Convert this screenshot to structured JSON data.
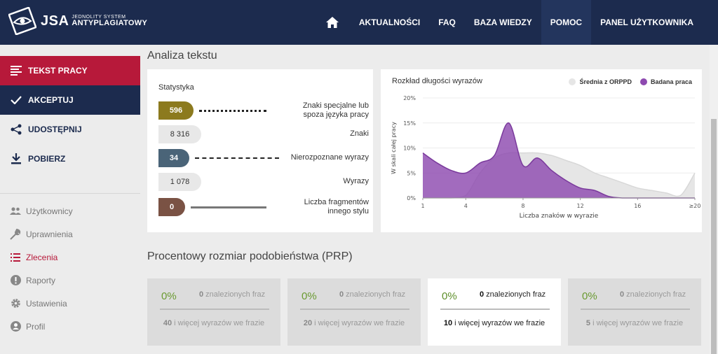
{
  "header": {
    "logo": {
      "brand": "JSA",
      "line1": "JEDNOLITY SYSTEM",
      "line2": "ANTYPLAGIATOWY"
    },
    "nav": [
      {
        "label": "AKTUALNOŚCI"
      },
      {
        "label": "FAQ"
      },
      {
        "label": "BAZA WIEDZY"
      },
      {
        "label": "POMOC"
      },
      {
        "label": "PANEL UŻYTKOWNIKA"
      }
    ],
    "home_icon": "home-icon"
  },
  "sidebar": {
    "actions": [
      {
        "label": "TEKST PRACY",
        "icon": "text-lines-icon"
      },
      {
        "label": "AKCEPTUJ",
        "icon": "check-icon"
      },
      {
        "label": "UDOSTĘPNIJ",
        "icon": "share-icon"
      },
      {
        "label": "POBIERZ",
        "icon": "download-icon"
      }
    ],
    "links": [
      {
        "label": "Użytkownicy",
        "icon": "users-icon"
      },
      {
        "label": "Uprawnienia",
        "icon": "wrench-icon"
      },
      {
        "label": "Zlecenia",
        "icon": "list-icon"
      },
      {
        "label": "Raporty",
        "icon": "alert-icon"
      },
      {
        "label": "Ustawienia",
        "icon": "gear-icon"
      },
      {
        "label": "Profil",
        "icon": "user-icon"
      }
    ]
  },
  "analysis": {
    "heading": "Analiza tekstu",
    "stats_title": "Statystyka",
    "stats": [
      {
        "value": "596",
        "label_1": "Znaki specjalne lub",
        "label_2": "spoza języka pracy",
        "color": "#8c7a1e"
      },
      {
        "value": "8 316",
        "label_1": "Znaki",
        "label_2": "",
        "color": "#e8e8e8"
      },
      {
        "value": "34",
        "label_1": "Nierozpoznane wyrazy",
        "label_2": "",
        "color": "#4a6478"
      },
      {
        "value": "1 078",
        "label_1": "Wyrazy",
        "label_2": "",
        "color": "#e8e8e8"
      },
      {
        "value": "0",
        "label_1": "Liczba fragmentów",
        "label_2": "innego stylu",
        "color": "#7a5244"
      }
    ]
  },
  "chart": {
    "title": "Rozkład długości wyrazów",
    "legend": [
      {
        "name": "Średnia z ORPPD",
        "color": "#e6e6e6"
      },
      {
        "name": "Badana praca",
        "color": "#8e4ab0"
      }
    ]
  },
  "chart_data": {
    "type": "area",
    "title": "Rozkład długości wyrazów",
    "xlabel": "Liczba znaków w wyrazie",
    "ylabel": "W skali całej pracy",
    "x_ticks": [
      "1",
      "4",
      "8",
      "12",
      "16",
      "≥20"
    ],
    "y_ticks": [
      "0%",
      "5%",
      "10%",
      "15%",
      "20%"
    ],
    "ylim": [
      0,
      20
    ],
    "x": [
      1,
      2,
      3,
      4,
      5,
      6,
      7,
      8,
      9,
      10,
      11,
      12,
      13,
      14,
      15,
      16,
      17,
      18,
      19,
      20
    ],
    "series": [
      {
        "name": "Średnia z ORPPD",
        "values": [
          0,
          0,
          0,
          0.5,
          5,
          8,
          9,
          9,
          9,
          8.5,
          7.5,
          6.5,
          5,
          4,
          3,
          2,
          1.5,
          1,
          0.5,
          5
        ]
      },
      {
        "name": "Badana praca",
        "values": [
          9,
          7,
          5.5,
          5,
          7,
          8.5,
          15,
          6.5,
          8,
          5.5,
          3.5,
          2,
          1.5,
          0.3,
          0,
          0,
          0,
          0,
          0,
          0
        ]
      }
    ]
  },
  "prp": {
    "heading": "Procentowy rozmiar podobieństwa (PRP)",
    "cards": [
      {
        "percent": "0%",
        "found_count": "0",
        "found_text": " znalezionych fraz",
        "words_count": "40",
        "words_text": " i więcej wyrazów we frazie"
      },
      {
        "percent": "0%",
        "found_count": "0",
        "found_text": " znalezionych fraz",
        "words_count": "20",
        "words_text": " i więcej wyrazów we frazie"
      },
      {
        "percent": "0%",
        "found_count": "0",
        "found_text": " znalezionych fraz",
        "words_count": "10",
        "words_text": " i więcej wyrazów we frazie"
      },
      {
        "percent": "0%",
        "found_count": "0",
        "found_text": " znalezionych fraz",
        "words_count": "5",
        "words_text": " i więcej wyrazów we frazie"
      }
    ]
  }
}
